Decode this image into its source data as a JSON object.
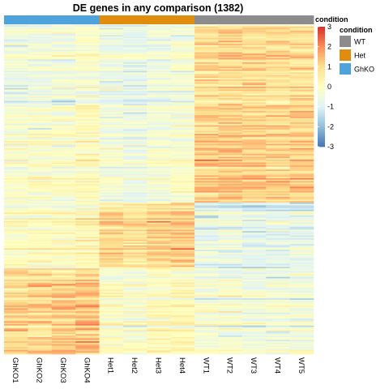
{
  "chart_data": {
    "type": "heatmap",
    "title": "DE genes in any comparison (1382)",
    "columns": [
      "GhKO1",
      "GhKO2",
      "GhKO3",
      "GhKO4",
      "Het1",
      "Het2",
      "Het3",
      "Het4",
      "WT1",
      "WT2",
      "WT3",
      "WT4",
      "WT5"
    ],
    "column_condition": [
      "GhKO",
      "GhKO",
      "GhKO",
      "GhKO",
      "Het",
      "Het",
      "Het",
      "Het",
      "WT",
      "WT",
      "WT",
      "WT",
      "WT"
    ],
    "n_rows": 1382,
    "color_scale": {
      "range": [
        -3,
        3
      ],
      "ticks": [
        3,
        2,
        1,
        0,
        -1,
        -2,
        -3
      ],
      "colors": [
        "#4575b4",
        "#91bfdb",
        "#e0f3f8",
        "#ffffbf",
        "#fee090",
        "#fc8d59",
        "#d73027"
      ]
    },
    "condition_legend": {
      "title": "condition",
      "items": [
        {
          "label": "WT",
          "color": "#8c8c8c"
        },
        {
          "label": "Het",
          "color": "#e08c0c"
        },
        {
          "label": "GhKO",
          "color": "#4ea3dc"
        }
      ]
    },
    "row_clusters": [
      {
        "rows_fraction": 0.3,
        "mean_by_condition": {
          "GhKO": -0.3,
          "Het": -0.5,
          "WT": 1.0
        }
      },
      {
        "rows_fraction": 0.24,
        "mean_by_condition": {
          "GhKO": 0.1,
          "Het": -0.3,
          "WT": 1.3
        }
      },
      {
        "rows_fraction": 0.2,
        "mean_by_condition": {
          "GhKO": 0.2,
          "Het": 1.1,
          "WT": -0.7
        }
      },
      {
        "rows_fraction": 0.26,
        "mean_by_condition": {
          "GhKO": 1.2,
          "Het": 0.0,
          "WT": -0.4
        }
      }
    ]
  }
}
